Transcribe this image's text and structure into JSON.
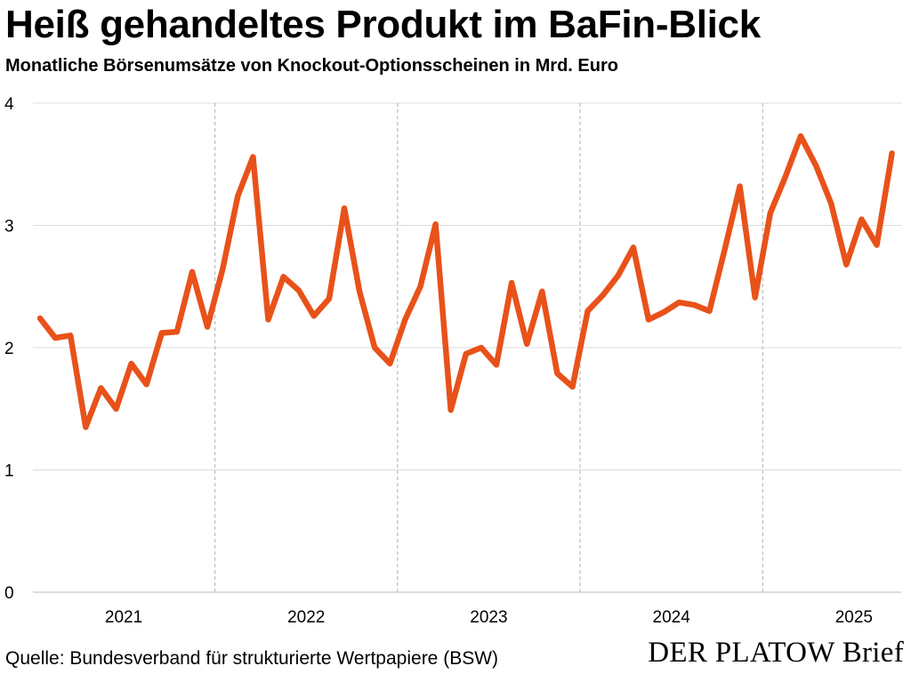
{
  "header": {
    "title": "Heiß gehandeltes Produkt im BaFin-Blick",
    "subtitle": "Monatliche Börsenumsätze von Knockout-Optionsscheinen in Mrd. Euro"
  },
  "footer": {
    "source": "Quelle: Bundesverband für strukturierte Wertpapiere (BSW)",
    "brand": "DER PLATOW Brief"
  },
  "colors": {
    "line": "#e8521a",
    "grid": "#dddddd",
    "year_separator": "#b0b0b0",
    "axis": "#bbbbbb"
  },
  "chart_data": {
    "type": "line",
    "title": "Heiß gehandeltes Produkt im BaFin-Blick",
    "subtitle": "Monatliche Börsenumsätze von Knockout-Optionsscheinen in Mrd. Euro",
    "xlabel": "",
    "ylabel": "",
    "ylim": [
      0,
      4
    ],
    "yticks": [
      0,
      1,
      2,
      3,
      4
    ],
    "grid": "horizontal",
    "year_labels": [
      "2021",
      "2022",
      "2023",
      "2024",
      "2025"
    ],
    "x_start": "2021-01",
    "series": [
      {
        "values": [
          2.24,
          2.08,
          2.1,
          1.35,
          1.67,
          1.5,
          1.87,
          1.7,
          2.12,
          2.13,
          2.62,
          2.17,
          2.64,
          3.24,
          3.56,
          2.23,
          2.58,
          2.47,
          2.26,
          2.4,
          3.14,
          2.46,
          2.0,
          1.87,
          2.23,
          2.5,
          3.01,
          1.49,
          1.95,
          2.0,
          1.86,
          2.53,
          2.03,
          2.46,
          1.79,
          1.68,
          2.3,
          2.43,
          2.59,
          2.82,
          2.23,
          2.29,
          2.37,
          2.35,
          2.3,
          2.8,
          3.32,
          2.41,
          3.1,
          3.4,
          3.73,
          3.49,
          3.18,
          2.68,
          3.05,
          2.84,
          3.59
        ]
      }
    ]
  }
}
